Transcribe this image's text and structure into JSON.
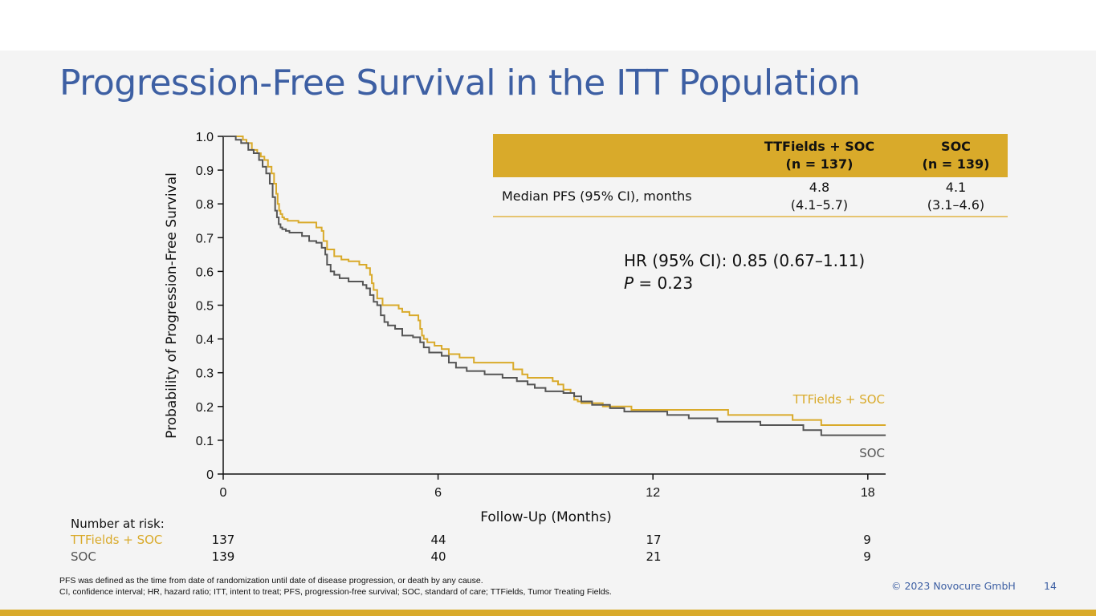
{
  "slide": {
    "title": "Progression-Free Survival in the ITT Population",
    "page_number": "14",
    "copyright": "© 2023 Novocure GmbH",
    "footnote_1": "PFS was defined as the time from date of randomization until date of disease progression, or death by any cause.",
    "footnote_2": "CI, confidence interval; HR, hazard ratio; ITT, intent to treat; PFS, progression-free survival; SOC, standard of care; TTFields, Tumor Treating Fields."
  },
  "table": {
    "col1_line1": "TTFields + SOC",
    "col1_line2": "(n = 137)",
    "col2_line1": "SOC",
    "col2_line2": "(n = 139)",
    "row_label": "Median PFS (95% CI), months",
    "col1_value": "4.8",
    "col1_ci": "(4.1–5.7)",
    "col2_value": "4.1",
    "col2_ci": "(3.1–4.6)"
  },
  "stats": {
    "hr_text": "HR (95% CI): 0.85 (0.67–1.11)",
    "p_label": "P",
    "p_value": " = 0.23"
  },
  "risk_table": {
    "header": "Number at risk:",
    "rows": [
      {
        "label": "TTFields + SOC",
        "values": [
          "137",
          "44",
          "17",
          "9"
        ]
      },
      {
        "label": "SOC",
        "values": [
          "139",
          "40",
          "21",
          "9"
        ]
      }
    ]
  },
  "colors": {
    "ttfields": "#d9aa2a",
    "soc": "#555555",
    "title": "#3d5fa3"
  },
  "chart_data": {
    "type": "line",
    "title": "Progression-Free Survival in the ITT Population",
    "xlabel": "Follow-Up (Months)",
    "ylabel": "Probability of Progression-Free Survival",
    "xlim": [
      0,
      18.5
    ],
    "ylim": [
      0,
      1.0
    ],
    "xticks": [
      0,
      6,
      12,
      18
    ],
    "xtick_labels": [
      "0",
      "6",
      "12",
      "18"
    ],
    "yticks": [
      0,
      0.1,
      0.2,
      0.3,
      0.4,
      0.5,
      0.6,
      0.7,
      0.8,
      0.9,
      1.0
    ],
    "ytick_labels": [
      "0",
      "0.1",
      "0.2",
      "0.3",
      "0.4",
      "0.5",
      "0.6",
      "0.7",
      "0.8",
      "0.9",
      "1.0"
    ],
    "series": [
      {
        "name": "TTFields + SOC",
        "color": "#d9aa2a",
        "step_x": [
          0,
          0.55,
          0.65,
          0.8,
          0.95,
          1.05,
          1.15,
          1.25,
          1.35,
          1.42,
          1.48,
          1.52,
          1.56,
          1.6,
          1.65,
          1.7,
          1.8,
          1.9,
          2.1,
          2.6,
          2.75,
          2.8,
          2.9,
          3.1,
          3.3,
          3.5,
          3.8,
          4.0,
          4.1,
          4.15,
          4.2,
          4.3,
          4.45,
          4.9,
          5.0,
          5.2,
          5.45,
          5.5,
          5.55,
          5.6,
          5.7,
          5.9,
          6.1,
          6.3,
          6.6,
          7.0,
          7.2,
          8.1,
          8.35,
          8.5,
          8.7,
          9.2,
          9.35,
          9.5,
          9.7,
          9.8,
          9.9,
          10.0,
          10.6,
          11.4,
          14.1,
          15.9,
          16.7,
          18.5
        ],
        "step_y": [
          1.0,
          0.99,
          0.98,
          0.96,
          0.95,
          0.94,
          0.93,
          0.91,
          0.89,
          0.86,
          0.83,
          0.8,
          0.78,
          0.77,
          0.76,
          0.755,
          0.75,
          0.75,
          0.745,
          0.73,
          0.72,
          0.69,
          0.665,
          0.645,
          0.635,
          0.63,
          0.62,
          0.61,
          0.59,
          0.565,
          0.545,
          0.52,
          0.5,
          0.49,
          0.48,
          0.47,
          0.455,
          0.43,
          0.41,
          0.4,
          0.39,
          0.38,
          0.37,
          0.355,
          0.345,
          0.33,
          0.33,
          0.31,
          0.295,
          0.285,
          0.285,
          0.275,
          0.265,
          0.25,
          0.24,
          0.22,
          0.215,
          0.21,
          0.2,
          0.19,
          0.175,
          0.16,
          0.145,
          0.145
        ]
      },
      {
        "name": "SOC",
        "color": "#555555",
        "step_x": [
          0,
          0.35,
          0.5,
          0.7,
          0.85,
          1.0,
          1.1,
          1.2,
          1.3,
          1.38,
          1.45,
          1.5,
          1.55,
          1.6,
          1.65,
          1.75,
          1.85,
          2.2,
          2.4,
          2.6,
          2.75,
          2.85,
          2.9,
          3.0,
          3.1,
          3.25,
          3.5,
          3.9,
          4.0,
          4.1,
          4.2,
          4.3,
          4.4,
          4.5,
          4.6,
          4.8,
          5.0,
          5.3,
          5.5,
          5.6,
          5.75,
          6.1,
          6.3,
          6.5,
          6.8,
          7.3,
          7.8,
          8.2,
          8.5,
          8.7,
          9.0,
          9.5,
          9.8,
          10.0,
          10.3,
          10.8,
          11.2,
          12.4,
          13.0,
          13.8,
          15.0,
          16.2,
          16.7,
          18.5
        ],
        "step_y": [
          1.0,
          0.99,
          0.98,
          0.96,
          0.95,
          0.93,
          0.91,
          0.89,
          0.86,
          0.82,
          0.78,
          0.76,
          0.74,
          0.73,
          0.725,
          0.72,
          0.715,
          0.705,
          0.69,
          0.685,
          0.67,
          0.65,
          0.62,
          0.6,
          0.59,
          0.58,
          0.57,
          0.56,
          0.55,
          0.53,
          0.51,
          0.5,
          0.47,
          0.45,
          0.44,
          0.43,
          0.41,
          0.405,
          0.39,
          0.375,
          0.36,
          0.35,
          0.33,
          0.315,
          0.305,
          0.295,
          0.285,
          0.275,
          0.265,
          0.255,
          0.245,
          0.24,
          0.23,
          0.215,
          0.205,
          0.195,
          0.185,
          0.175,
          0.165,
          0.155,
          0.145,
          0.13,
          0.115,
          0.115
        ]
      }
    ],
    "series_labels": {
      "ttfields": "TTFields + SOC",
      "soc": "SOC"
    }
  }
}
